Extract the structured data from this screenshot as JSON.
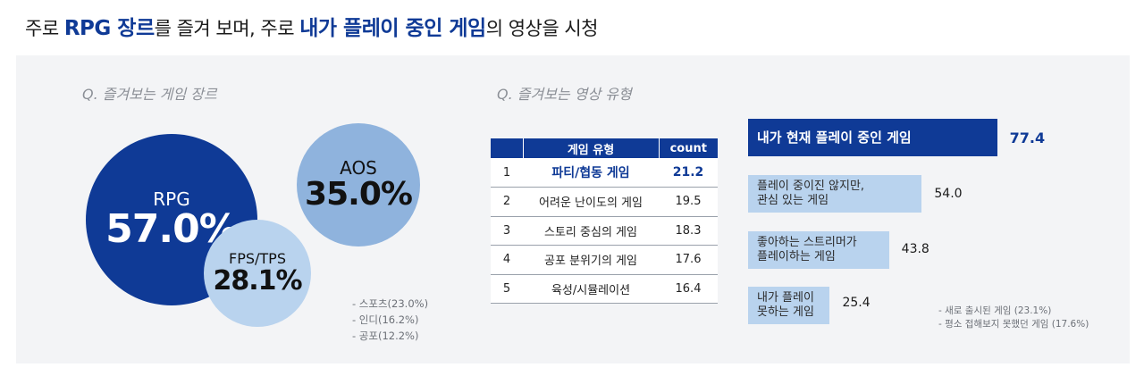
{
  "headline": {
    "p1": "주로 ",
    "h1": "RPG 장르",
    "p2": "를 즐겨 보며, 주로 ",
    "h2": "내가 플레이 중인 게임",
    "p3": "의 영상을 시청"
  },
  "colors": {
    "navy": "#0f3a96",
    "mid": "#8fb3dd",
    "light": "#b9d3ee",
    "panel": "#f3f4f6"
  },
  "chart_data": [
    {
      "type": "bubble",
      "title": "Q. 즐겨보는 게임 장르",
      "items": [
        {
          "name": "RPG",
          "label": "57.0%",
          "value": 57.0
        },
        {
          "name": "AOS",
          "label": "35.0%",
          "value": 35.0
        },
        {
          "name": "FPS/TPS",
          "label": "28.1%",
          "value": 28.1
        }
      ],
      "notes": [
        "- 스포츠(23.0%)",
        "- 인디(16.2%)",
        "- 공포(12.2%)"
      ]
    },
    {
      "type": "table",
      "columns": [
        "",
        "게임 유형",
        "count"
      ],
      "rows": [
        [
          "1",
          "파티/협동 게임",
          "21.2"
        ],
        [
          "2",
          "어려운 난이도의 게임",
          "19.5"
        ],
        [
          "3",
          "스토리 중심의 게임",
          "18.3"
        ],
        [
          "4",
          "공포 분위기의 게임",
          "17.6"
        ],
        [
          "5",
          "육성/시뮬레이션",
          "16.4"
        ]
      ]
    },
    {
      "type": "bar",
      "title": "Q. 즐겨보는 영상 유형",
      "orientation": "horizontal",
      "categories": [
        [
          "내가 현재 플레이 중인 게임"
        ],
        [
          "플레이 중이진 않지만,",
          "관심 있는 게임"
        ],
        [
          "좋아하는 스트리머가",
          "플레이하는 게임"
        ],
        [
          "내가 플레이",
          "못하는 게임"
        ]
      ],
      "values": [
        77.4,
        54.0,
        43.8,
        25.4
      ],
      "labels": [
        "77.4",
        "54.0",
        "43.8",
        "25.4"
      ],
      "notes": [
        "- 새로 출시된 게임 (23.1%)",
        "- 평소 접해보지 못했던 게임 (17.6%)"
      ]
    }
  ]
}
